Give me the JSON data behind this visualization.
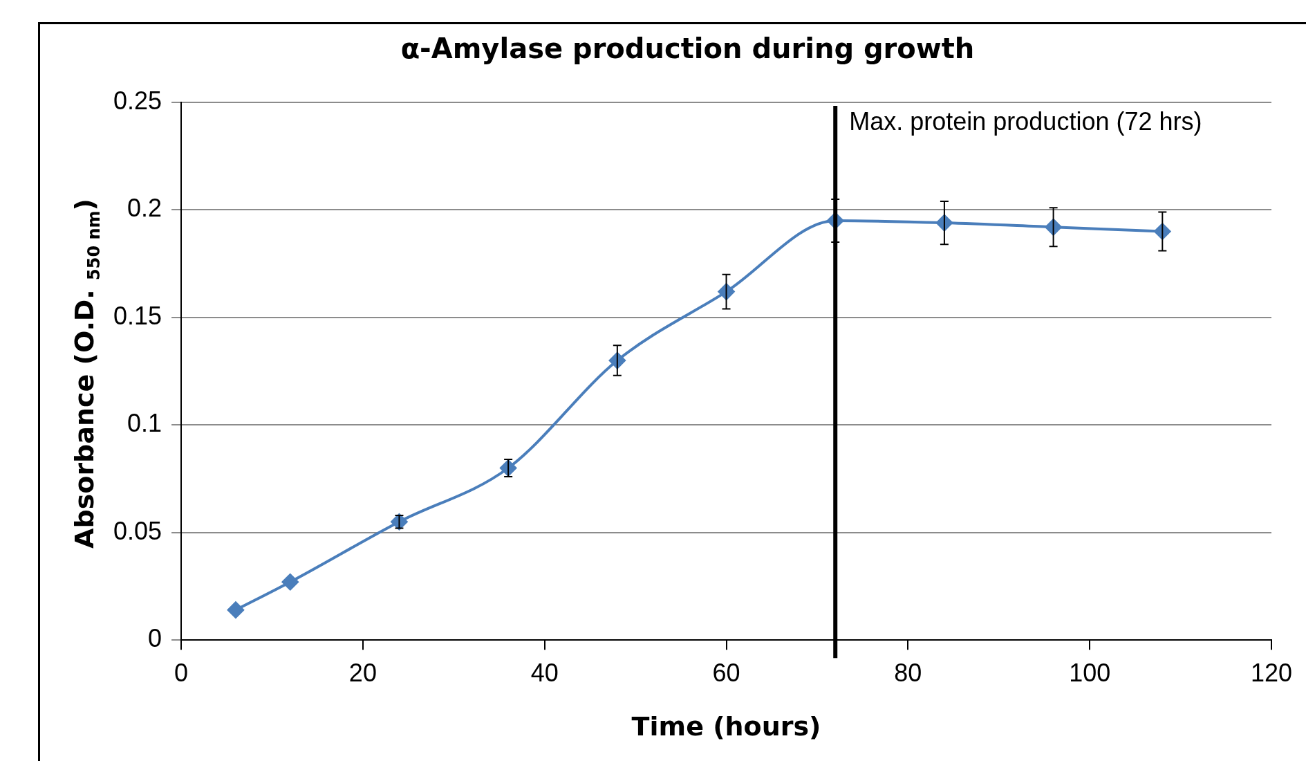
{
  "chart_data": {
    "type": "line",
    "title": "α-Amylase production during growth",
    "xlabel": "Time (hours)",
    "ylabel": "Absorbance (O.D. $_{550 nm}$)",
    "x": [
      6,
      12,
      24,
      36,
      48,
      60,
      72,
      84,
      96,
      108
    ],
    "series": [
      {
        "color": "#4a7ebb",
        "values": [
          0.014,
          0.027,
          0.055,
          0.08,
          0.13,
          0.162,
          0.195,
          0.194,
          0.192,
          0.19
        ],
        "errors": [
          null,
          null,
          0.003,
          0.004,
          0.007,
          0.008,
          0.01,
          0.01,
          0.009,
          0.009
        ]
      }
    ],
    "xlim": [
      0,
      120
    ],
    "xticks": [
      0,
      20,
      40,
      60,
      80,
      100,
      120
    ],
    "ylim": [
      0,
      0.25
    ],
    "yticks": [
      0,
      0.05,
      0.1,
      0.15,
      0.2,
      0.25
    ],
    "grid": "y",
    "marker": "diamond",
    "line_style": "solid",
    "ref_lines": [
      {
        "axis": "x",
        "value": 72,
        "label": "Max. protein production (72 hrs)",
        "color": "#000000"
      }
    ]
  }
}
